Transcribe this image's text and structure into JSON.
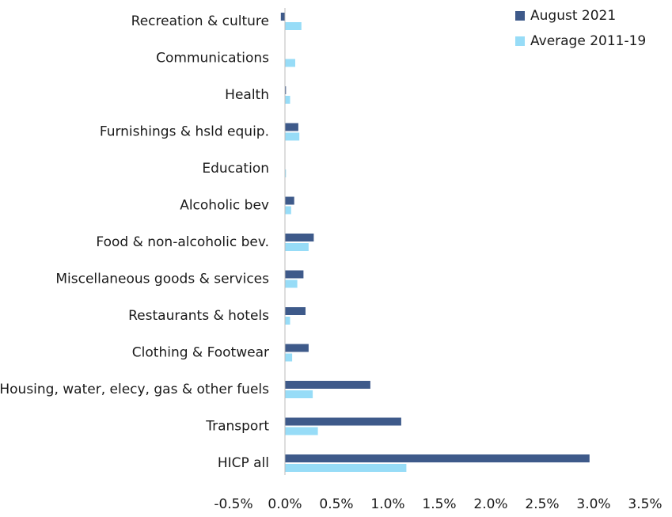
{
  "chart_data": {
    "type": "bar",
    "orientation": "horizontal",
    "categories": [
      "Recreation & culture",
      "Communications",
      "Health",
      "Furnishings & hsld equip.",
      "Education",
      "Alcoholic bev",
      "Food & non-alcoholic bev.",
      "Miscellaneous goods & services",
      "Restaurants & hotels",
      "Clothing & Footwear",
      "Housing, water, elecy, gas & other fuels",
      "Transport",
      "HICP all"
    ],
    "series": [
      {
        "name": "August 2021",
        "color": "#3e5a8a",
        "values": [
          -0.04,
          0,
          0.01,
          0.13,
          0,
          0.09,
          0.28,
          0.18,
          0.2,
          0.23,
          0.83,
          1.13,
          2.96
        ]
      },
      {
        "name": "Average 2011-19",
        "color": "#97dcf7",
        "values": [
          0.16,
          0.1,
          0.05,
          0.14,
          0.01,
          0.06,
          0.23,
          0.12,
          0.05,
          0.07,
          0.27,
          0.32,
          1.18
        ]
      }
    ],
    "xlim": [
      -0.5,
      3.5
    ],
    "xticks": [
      {
        "value": -0.5,
        "label": "-0.5%"
      },
      {
        "value": 0,
        "label": "0.0%"
      },
      {
        "value": 0.5,
        "label": "0.5%"
      },
      {
        "value": 1,
        "label": "1.0%"
      },
      {
        "value": 1.5,
        "label": "1.5%"
      },
      {
        "value": 2,
        "label": "2.0%"
      },
      {
        "value": 2.5,
        "label": "2.5%"
      },
      {
        "value": 3,
        "label": "3.0%"
      },
      {
        "value": 3.5,
        "label": "3.5%"
      }
    ],
    "legend": "top-right",
    "grid": false
  }
}
